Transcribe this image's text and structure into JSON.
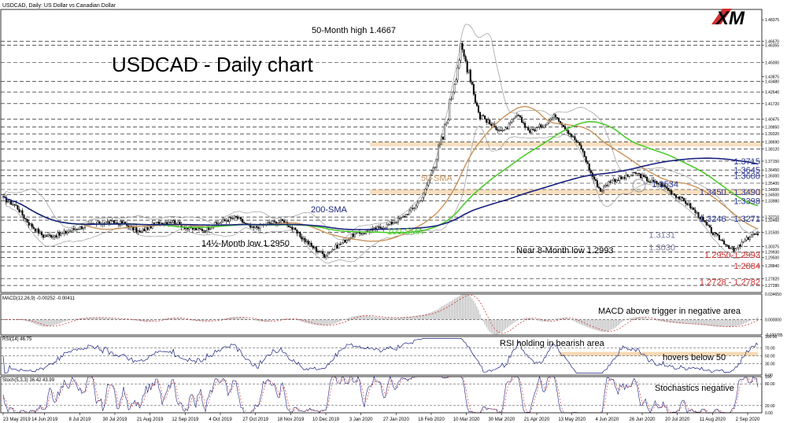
{
  "header_text": "USDCAD, Daily:  US Dollar vs Canadian Dollar",
  "logo_text": "XM",
  "colors": {
    "candle": "#000000",
    "sma50": "#c8935a",
    "sma100": "#4ccc2c",
    "sma200": "#1a237e",
    "bands": "#999999",
    "level_blue": "#283593",
    "level_red": "#d32f2f",
    "band_fill": "#f6d9b4",
    "grid": "#000000"
  },
  "chart_data": [
    {
      "type": "candlestick",
      "title": "USDCAD - Daily chart",
      "annotations": {
        "high": "50-Month high 1.4667",
        "low_14m": "14½-Month low 1.2950",
        "low_8m": "Near 8-Month low 1.2993",
        "sma50": "50-SMA",
        "sma100": "100-SMA",
        "sma200": "200-SMA"
      },
      "ylim": [
        1.2672,
        1.492
      ],
      "y_tick_labels": [
        "1.48375",
        "1.46670",
        "1.46355",
        "1.45000",
        "1.43875",
        "1.43480",
        "1.42640",
        "1.41720",
        "1.40475",
        "1.39850",
        "1.39320",
        "1.38690",
        "1.38120",
        "1.37150",
        "1.36450",
        "1.36000",
        "1.35400",
        "1.34900",
        "1.34500",
        "1.33980",
        "1.32710",
        "1.32460",
        "1.31500",
        "1.30375",
        "1.29930",
        "1.29500",
        "1.28840",
        "1.27820",
        "1.27280"
      ],
      "x_tick_labels": [
        "23 May 2019",
        "14 Jun 2019",
        "8 Jul 2019",
        "30 Jul 2019",
        "21 Aug 2019",
        "12 Sep 2019",
        "4 Oct 2019",
        "27 Oct 2019",
        "18 Nov 2019",
        "10 Dec 2019",
        "3 Jan 2020",
        "27 Jan 2020",
        "18 Feb 2020",
        "10 Mar 2020",
        "30 Mar 2020",
        "21 Apr 2020",
        "13 May 2020",
        "4 Jun 2020",
        "26 Jun 2020",
        "20 Jul 2020",
        "11 Aug 2020",
        "2 Sep 2020"
      ],
      "dashed_levels": [
        1.4667,
        1.4636,
        1.45,
        1.4348,
        1.4264,
        1.4172,
        1.4048,
        1.3985,
        1.3932,
        1.3869,
        1.3812,
        1.3715,
        1.3645,
        1.36,
        1.354,
        1.349,
        1.345,
        1.3398,
        1.3271,
        1.3246,
        1.315,
        1.3038,
        1.2993,
        1.295,
        1.2884,
        1.2782,
        1.2728
      ],
      "support_resistance_zones": [
        [
          1.3832,
          1.3866
        ],
        [
          1.345,
          1.349
        ]
      ],
      "level_labels": [
        {
          "text": "1.3715",
          "value": 1.3715,
          "color": "blue"
        },
        {
          "text": "1.3645",
          "value": 1.3645,
          "color": "blue"
        },
        {
          "text": "1.3600",
          "value": 1.36,
          "color": "blue"
        },
        {
          "text": "1.3534",
          "value": 1.3534,
          "color": "blue"
        },
        {
          "text": "1.3450 - 1.3490",
          "value": 1.347,
          "color": "blue"
        },
        {
          "text": "1.3398",
          "value": 1.3398,
          "color": "blue"
        },
        {
          "text": "1.3246 - 1.3271",
          "value": 1.3258,
          "color": "blue"
        },
        {
          "text": "1.3131",
          "value": 1.3131,
          "color": "gray"
        },
        {
          "text": "1.3030",
          "value": 1.303,
          "color": "gray"
        },
        {
          "text": "1.2950-1.2993",
          "value": 1.2972,
          "color": "red"
        },
        {
          "text": "1.2884",
          "value": 1.2884,
          "color": "red"
        },
        {
          "text": "1.2728 - 1.2782",
          "value": 1.2755,
          "color": "red"
        }
      ],
      "anchors": [
        [
          0,
          1.342
        ],
        [
          8,
          1.336
        ],
        [
          16,
          1.322
        ],
        [
          25,
          1.312
        ],
        [
          35,
          1.313
        ],
        [
          45,
          1.318
        ],
        [
          55,
          1.321
        ],
        [
          65,
          1.323
        ],
        [
          75,
          1.322
        ],
        [
          85,
          1.315
        ],
        [
          95,
          1.322
        ],
        [
          105,
          1.324
        ],
        [
          115,
          1.318
        ],
        [
          125,
          1.317
        ],
        [
          135,
          1.323
        ],
        [
          145,
          1.327
        ],
        [
          155,
          1.318
        ],
        [
          165,
          1.322
        ],
        [
          175,
          1.324
        ],
        [
          185,
          1.312
        ],
        [
          193,
          1.303
        ],
        [
          200,
          1.297
        ],
        [
          208,
          1.304
        ],
        [
          218,
          1.313
        ],
        [
          228,
          1.316
        ],
        [
          238,
          1.32
        ],
        [
          248,
          1.326
        ],
        [
          256,
          1.335
        ],
        [
          262,
          1.345
        ],
        [
          268,
          1.368
        ],
        [
          274,
          1.39
        ],
        [
          280,
          1.43
        ],
        [
          285,
          1.46
        ],
        [
          290,
          1.445
        ],
        [
          296,
          1.41
        ],
        [
          304,
          1.4
        ],
        [
          312,
          1.395
        ],
        [
          320,
          1.408
        ],
        [
          328,
          1.395
        ],
        [
          336,
          1.4
        ],
        [
          344,
          1.408
        ],
        [
          352,
          1.395
        ],
        [
          360,
          1.382
        ],
        [
          366,
          1.362
        ],
        [
          372,
          1.348
        ],
        [
          378,
          1.356
        ],
        [
          386,
          1.358
        ],
        [
          394,
          1.362
        ],
        [
          402,
          1.356
        ],
        [
          410,
          1.353
        ],
        [
          418,
          1.345
        ],
        [
          426,
          1.338
        ],
        [
          434,
          1.327
        ],
        [
          442,
          1.314
        ],
        [
          450,
          1.306
        ],
        [
          455,
          1.3
        ],
        [
          460,
          1.306
        ],
        [
          466,
          1.313
        ],
        [
          470,
          1.3131
        ]
      ]
    },
    {
      "type": "histogram",
      "title": "MACD(12,26,9) -0.00252 -0.00411",
      "annotation": "MACD above trigger in negative area",
      "y_tick_labels": [
        "0.034650",
        "0.000000",
        "-0.020785"
      ],
      "ylim": [
        -0.0208,
        0.0347
      ]
    },
    {
      "type": "line",
      "title": "RSI(14) 46.75",
      "annotations": [
        "RSI holding in bearish area",
        "hovers below 50"
      ],
      "y_tick_labels": [
        "100.00",
        "70.00",
        "50.00",
        "30.00",
        "0.00"
      ],
      "ylim": [
        0,
        100
      ],
      "shaded_range": [
        50,
        60
      ]
    },
    {
      "type": "line",
      "title": "Stoch(5,3,3) 36.42 43.99",
      "annotation": "Stochastics negative",
      "y_tick_labels": [
        "100",
        "80.00",
        "20.00",
        "0.00"
      ],
      "ylim": [
        0,
        100
      ]
    }
  ]
}
